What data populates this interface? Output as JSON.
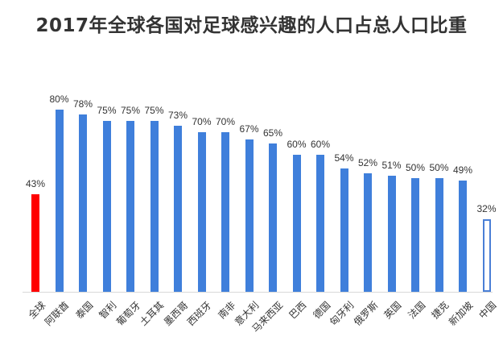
{
  "chart_data": {
    "type": "bar",
    "title": "2017年全球各国对足球感兴趣的人口占总人口比重",
    "xlabel": "",
    "ylabel": "",
    "ylim": [
      0,
      80
    ],
    "grid": false,
    "legend": null,
    "categories": [
      "全球",
      "阿联酋",
      "泰国",
      "智利",
      "葡萄牙",
      "土耳其",
      "墨西哥",
      "西班牙",
      "南非",
      "意大利",
      "马来西亚",
      "巴西",
      "德国",
      "匈牙利",
      "俄罗斯",
      "英国",
      "法国",
      "捷克",
      "新加坡",
      "中国"
    ],
    "values": [
      43,
      80,
      78,
      75,
      75,
      75,
      73,
      70,
      70,
      67,
      65,
      60,
      60,
      54,
      52,
      51,
      50,
      50,
      49,
      32
    ],
    "value_labels": [
      "43%",
      "80%",
      "78%",
      "75%",
      "75%",
      "75%",
      "73%",
      "70%",
      "70%",
      "67%",
      "65%",
      "60%",
      "60%",
      "54%",
      "52%",
      "51%",
      "50%",
      "50%",
      "49%",
      "32%"
    ],
    "annotations": {
      "highlighted_bar": "全球",
      "outlined_bar": "中国"
    },
    "colors": {
      "default": "#3f7fdb",
      "highlight": "#ff0000",
      "outline": "#4a7fd6"
    }
  }
}
